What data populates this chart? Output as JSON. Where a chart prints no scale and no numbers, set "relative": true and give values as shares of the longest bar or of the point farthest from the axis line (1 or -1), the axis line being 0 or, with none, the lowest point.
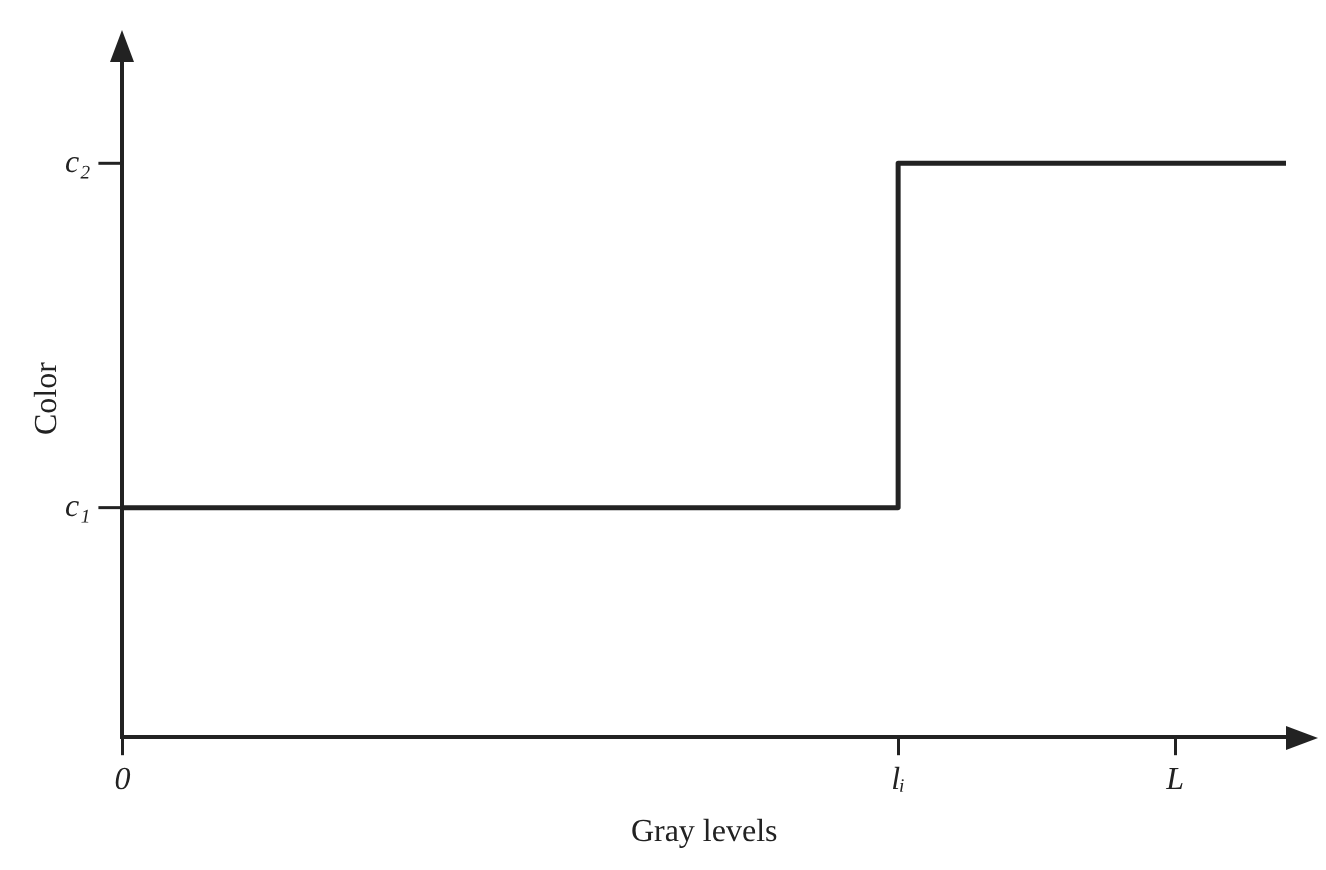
{
  "chart_data": {
    "type": "step",
    "xlabel": "Gray levels",
    "ylabel": "Color",
    "relative": true,
    "categories": [
      "0",
      null,
      null,
      null,
      null,
      null,
      null,
      null,
      null,
      null,
      null,
      null,
      null,
      null,
      "lᵢ",
      null,
      null,
      null,
      null,
      "L",
      null,
      null
    ],
    "series": [
      {
        "color": "#222222",
        "values": [
          0.4,
          0.4,
          0.4,
          0.4,
          0.4,
          0.4,
          0.4,
          0.4,
          0.4,
          0.4,
          0.4,
          0.4,
          0.4,
          0.4,
          1,
          1,
          1,
          1,
          1,
          1,
          1,
          1
        ]
      }
    ],
    "annotations": [
      "c₁",
      "c₂"
    ],
    "grid": false,
    "legend": false,
    "marker": "none",
    "line_style": "solid"
  }
}
